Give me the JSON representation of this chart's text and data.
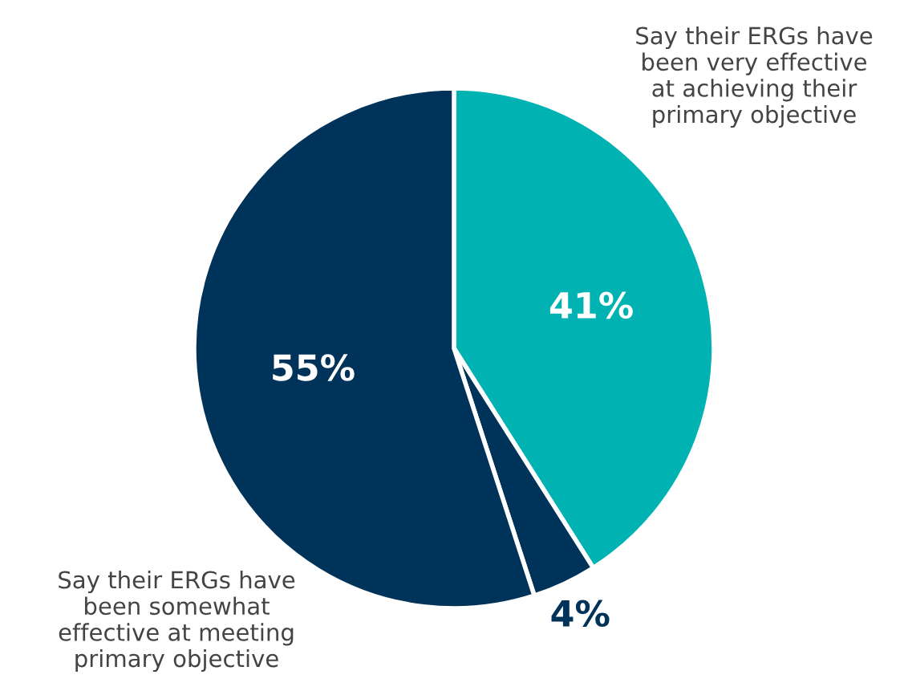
{
  "chart_data": {
    "type": "pie",
    "categories": [
      "Say their ERGs have\nbeen very effective\nat achieving their\nprimary objective",
      null,
      "Say their ERGs have\nbeen somewhat\neffective at meeting\nprimary objective"
    ],
    "values": [
      41,
      4,
      55
    ],
    "colors": [
      "#00b2b2",
      "#003359",
      "#003359"
    ],
    "value_labels": [
      "41%",
      "4%",
      "55%"
    ]
  }
}
